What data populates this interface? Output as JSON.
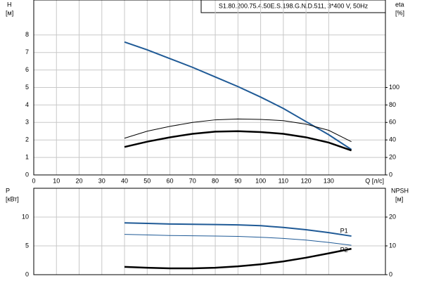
{
  "chart_data": [
    {
      "type": "line",
      "title": "S1.80.200.75.4.50E.S.198.G.N.D.511, 3*400 V, 50Hz",
      "y_label": "H",
      "y_unit": "[м]",
      "y2_label": "eta",
      "y2_unit": "[%]",
      "x_label": "Q [л/с]",
      "xlim": [
        0,
        155
      ],
      "xticks": [
        0,
        10,
        20,
        30,
        40,
        50,
        60,
        70,
        80,
        90,
        100,
        110,
        120,
        130
      ],
      "ylim": [
        0,
        10
      ],
      "yticks": [
        0,
        1,
        2,
        3,
        4,
        5,
        6,
        7,
        8
      ],
      "y2lim": [
        0,
        200
      ],
      "y2ticks": [
        0,
        20,
        40,
        60,
        80,
        100
      ],
      "grid": true,
      "x": [
        40,
        50,
        60,
        70,
        80,
        90,
        100,
        110,
        120,
        130,
        140
      ],
      "series": [
        {
          "color": "#1f5a96",
          "line_width": 2,
          "values": [
            7.6,
            7.15,
            6.65,
            6.15,
            5.6,
            5.05,
            4.45,
            3.8,
            3.05,
            2.3,
            1.45
          ]
        },
        {
          "color": "#000000",
          "line_width": 1,
          "axis": "y2",
          "values": [
            42,
            50,
            55.5,
            60,
            63,
            64,
            63.5,
            62,
            58,
            51,
            38
          ]
        },
        {
          "color": "#000000",
          "line_width": 2.5,
          "axis": "y2",
          "values": [
            32,
            38,
            43,
            47,
            49.5,
            50,
            49,
            47,
            43,
            37,
            28
          ]
        }
      ]
    },
    {
      "type": "line",
      "y_label": "P",
      "y_unit": "[кВт]",
      "y2_label": "NPSH",
      "y2_unit": "[м]",
      "xlim": [
        0,
        155
      ],
      "ylim": [
        0,
        15
      ],
      "yticks": [
        0,
        5,
        10
      ],
      "y2lim": [
        0,
        30
      ],
      "y2ticks": [
        0,
        10,
        20
      ],
      "grid": true,
      "x": [
        40,
        50,
        60,
        70,
        80,
        90,
        100,
        110,
        120,
        130,
        140
      ],
      "series": [
        {
          "name": "P1",
          "color": "#1f5a96",
          "line_width": 2,
          "values": [
            9.0,
            8.9,
            8.8,
            8.75,
            8.7,
            8.65,
            8.5,
            8.2,
            7.8,
            7.3,
            6.7
          ]
        },
        {
          "name": "P2",
          "color": "#1f5a96",
          "line_width": 1,
          "values": [
            7.0,
            6.9,
            6.8,
            6.75,
            6.7,
            6.65,
            6.5,
            6.3,
            6.0,
            5.6,
            5.1
          ]
        },
        {
          "color": "#000000",
          "line_width": 2.5,
          "axis": "y2",
          "values": [
            2.7,
            2.4,
            2.2,
            2.2,
            2.4,
            2.9,
            3.6,
            4.6,
            5.9,
            7.4,
            9.0
          ]
        }
      ]
    }
  ]
}
